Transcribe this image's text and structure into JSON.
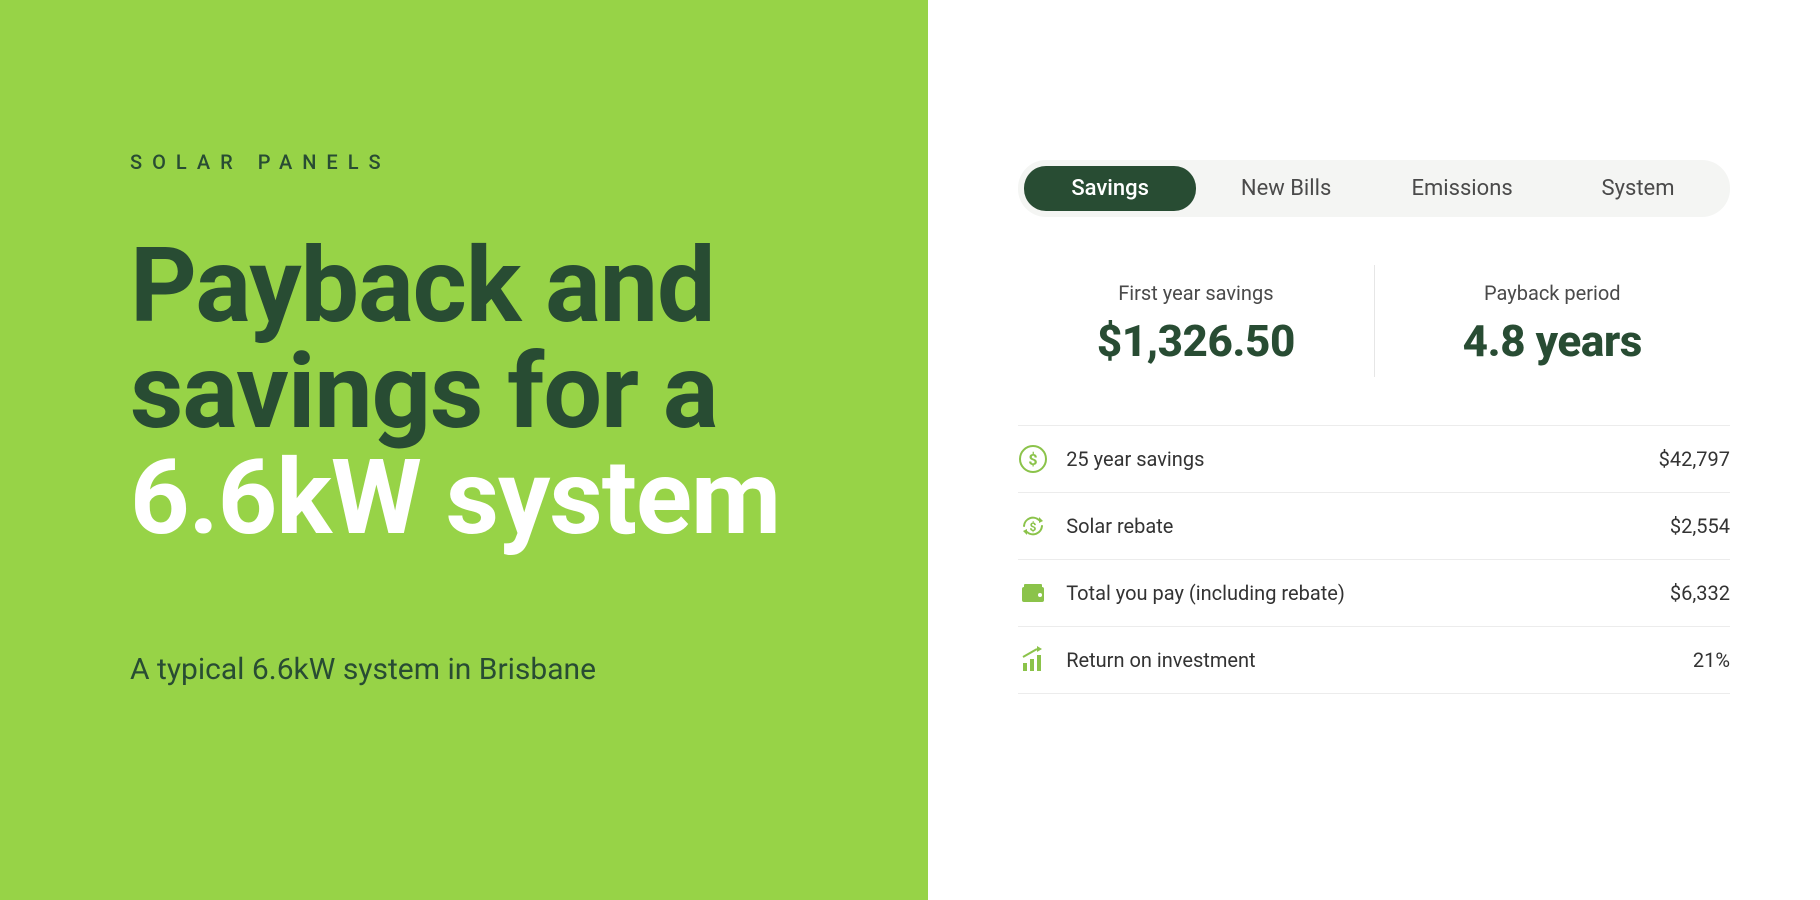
{
  "colors": {
    "hero_bg": "#97d347",
    "hero_dark_text": "#284c33",
    "hero_light_text": "#ffffff",
    "tab_bg": "#f4f5f3",
    "tab_active_bg": "#284c33",
    "tab_active_text": "#ffffff",
    "tab_text": "#4a4a4a",
    "kpi_value": "#284c33",
    "icon": "#8bc34a"
  },
  "hero": {
    "eyebrow": "SOLAR PANELS",
    "headline_line1": "Payback and savings for a",
    "headline_line2": "6.6kW system",
    "subhead": "A typical 6.6kW system in Brisbane"
  },
  "tabs": [
    "Savings",
    "New Bills",
    "Emissions",
    "System"
  ],
  "active_tab_index": 0,
  "kpis": [
    {
      "label": "First year savings",
      "value": "$1,326.50"
    },
    {
      "label": "Payback period",
      "value": "4.8 years"
    }
  ],
  "items": [
    {
      "icon": "dollar-circle-icon",
      "label": "25 year savings",
      "value": "$42,797"
    },
    {
      "icon": "refresh-dollar-icon",
      "label": "Solar rebate",
      "value": "$2,554"
    },
    {
      "icon": "wallet-icon",
      "label": "Total you pay (including rebate)",
      "value": "$6,332"
    },
    {
      "icon": "chart-up-icon",
      "label": "Return on investment",
      "value": "21%"
    }
  ]
}
